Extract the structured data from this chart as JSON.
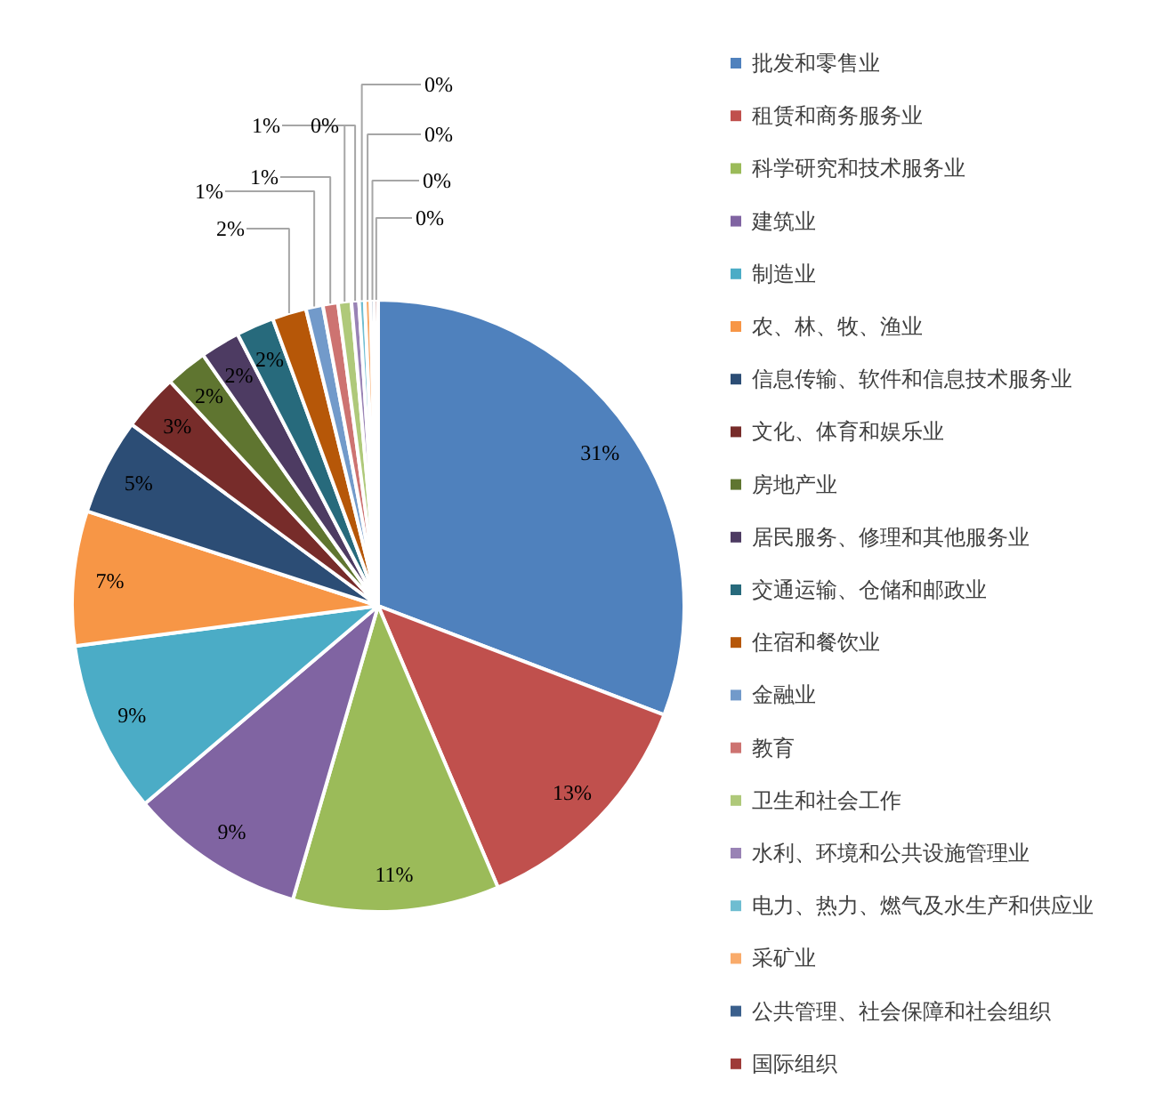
{
  "chart_data": {
    "type": "pie",
    "legend": "right",
    "value_labels": [
      "31%",
      "13%",
      "11%",
      "9%",
      "9%",
      "7%",
      "5%",
      "3%",
      "2%",
      "2%",
      "2%",
      "2%",
      "1%",
      "1%",
      "1%",
      "0%",
      "0%",
      "0%",
      "0%",
      "0%"
    ],
    "categories": [
      "批发和零售业",
      "租赁和商务服务业",
      "科学研究和技术服务业",
      "建筑业",
      "制造业",
      "农、林、牧、渔业",
      "信息传输、软件和信息技术服务业",
      "文化、体育和娱乐业",
      "房地产业",
      "居民服务、修理和其他服务业",
      "交通运输、仓储和邮政业",
      "住宿和餐饮业",
      "金融业",
      "教育",
      "卫生和社会工作",
      "水利、环境和公共设施管理业",
      "电力、热力、燃气及水生产和供应业",
      "采矿业",
      "公共管理、社会保障和社会组织",
      "国际组织"
    ],
    "values": [
      30.8,
      12.8,
      10.9,
      9.3,
      9.1,
      7.1,
      5.1,
      3.0,
      2.2,
      2.1,
      2.0,
      1.8,
      0.9,
      0.8,
      0.7,
      0.4,
      0.3,
      0.3,
      0.2,
      0.2
    ],
    "colors": [
      "#4f81bd",
      "#c0504d",
      "#9bbb59",
      "#8064a2",
      "#4bacc6",
      "#f79646",
      "#2c4d75",
      "#772c2a",
      "#5f7530",
      "#4d3b62",
      "#276a7c",
      "#b65708",
      "#729aca",
      "#cd7371",
      "#afc97a",
      "#9983b5",
      "#6fbdd1",
      "#f9ab6b",
      "#3a5f8c",
      "#9e3b38"
    ]
  }
}
